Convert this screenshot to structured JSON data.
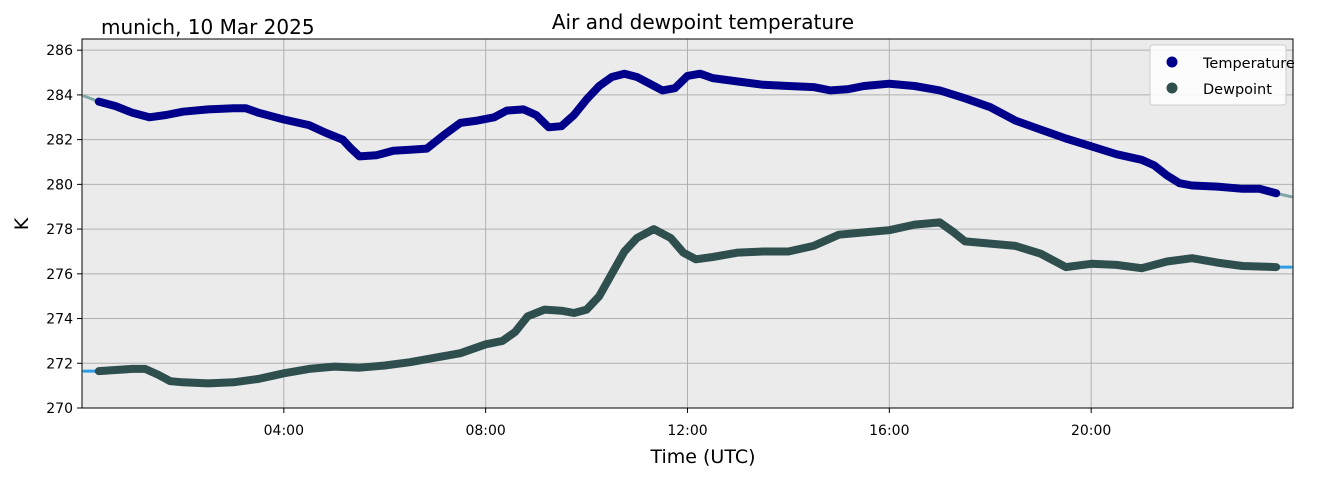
{
  "chart_data": {
    "type": "line",
    "title": "Air and dewpoint temperature",
    "subtitle": "munich, 10 Mar 2025",
    "xlabel": "Time (UTC)",
    "ylabel": "K",
    "xlim": [
      "00:00",
      "24:00"
    ],
    "ylim": [
      270,
      286.5
    ],
    "yticks": [
      270,
      272,
      274,
      276,
      278,
      280,
      282,
      284,
      286
    ],
    "xticks": [
      "04:00",
      "08:00",
      "12:00",
      "16:00",
      "20:00"
    ],
    "grid": true,
    "legend_position": "top-right",
    "background": "#ebebeb",
    "series": [
      {
        "name": "Temperature",
        "color": "#00008b",
        "raw_color": "#7fa6a6",
        "points": [
          [
            "00:20",
            283.7
          ],
          [
            "00:40",
            283.5
          ],
          [
            "01:00",
            283.2
          ],
          [
            "01:20",
            283.0
          ],
          [
            "01:40",
            283.1
          ],
          [
            "02:00",
            283.25
          ],
          [
            "02:30",
            283.35
          ],
          [
            "03:00",
            283.4
          ],
          [
            "03:15",
            283.4
          ],
          [
            "03:30",
            283.2
          ],
          [
            "04:00",
            282.9
          ],
          [
            "04:30",
            282.65
          ],
          [
            "04:50",
            282.3
          ],
          [
            "05:10",
            282.0
          ],
          [
            "05:20",
            281.6
          ],
          [
            "05:30",
            281.25
          ],
          [
            "05:50",
            281.3
          ],
          [
            "06:10",
            281.5
          ],
          [
            "06:30",
            281.55
          ],
          [
            "06:50",
            281.6
          ],
          [
            "07:10",
            282.2
          ],
          [
            "07:30",
            282.75
          ],
          [
            "07:50",
            282.85
          ],
          [
            "08:10",
            283.0
          ],
          [
            "08:25",
            283.3
          ],
          [
            "08:45",
            283.35
          ],
          [
            "09:00",
            283.1
          ],
          [
            "09:15",
            282.55
          ],
          [
            "09:30",
            282.6
          ],
          [
            "09:45",
            283.1
          ],
          [
            "10:00",
            283.8
          ],
          [
            "10:15",
            284.4
          ],
          [
            "10:30",
            284.8
          ],
          [
            "10:45",
            284.95
          ],
          [
            "11:00",
            284.8
          ],
          [
            "11:15",
            284.5
          ],
          [
            "11:30",
            284.2
          ],
          [
            "11:45",
            284.3
          ],
          [
            "12:00",
            284.85
          ],
          [
            "12:15",
            284.95
          ],
          [
            "12:30",
            284.75
          ],
          [
            "13:00",
            284.6
          ],
          [
            "13:30",
            284.45
          ],
          [
            "14:00",
            284.4
          ],
          [
            "14:30",
            284.35
          ],
          [
            "14:50",
            284.2
          ],
          [
            "15:10",
            284.25
          ],
          [
            "15:30",
            284.4
          ],
          [
            "16:00",
            284.5
          ],
          [
            "16:30",
            284.4
          ],
          [
            "17:00",
            284.2
          ],
          [
            "17:30",
            283.85
          ],
          [
            "18:00",
            283.45
          ],
          [
            "18:30",
            282.85
          ],
          [
            "19:00",
            282.45
          ],
          [
            "19:30",
            282.05
          ],
          [
            "20:00",
            281.7
          ],
          [
            "20:30",
            281.35
          ],
          [
            "21:00",
            281.1
          ],
          [
            "21:15",
            280.85
          ],
          [
            "21:30",
            280.4
          ],
          [
            "21:45",
            280.05
          ],
          [
            "22:00",
            279.95
          ],
          [
            "22:30",
            279.9
          ],
          [
            "23:00",
            279.8
          ],
          [
            "23:20",
            279.8
          ],
          [
            "23:40",
            279.6
          ]
        ]
      },
      {
        "name": "Dewpoint",
        "color": "#2f4f4f",
        "raw_color": "#2d9ee6",
        "points": [
          [
            "00:20",
            271.65
          ],
          [
            "00:40",
            271.7
          ],
          [
            "01:00",
            271.75
          ],
          [
            "01:15",
            271.75
          ],
          [
            "01:30",
            271.5
          ],
          [
            "01:45",
            271.2
          ],
          [
            "02:00",
            271.15
          ],
          [
            "02:30",
            271.1
          ],
          [
            "03:00",
            271.15
          ],
          [
            "03:30",
            271.3
          ],
          [
            "04:00",
            271.55
          ],
          [
            "04:30",
            271.75
          ],
          [
            "05:00",
            271.85
          ],
          [
            "05:30",
            271.8
          ],
          [
            "06:00",
            271.9
          ],
          [
            "06:30",
            272.05
          ],
          [
            "07:00",
            272.25
          ],
          [
            "07:30",
            272.45
          ],
          [
            "08:00",
            272.85
          ],
          [
            "08:20",
            273.0
          ],
          [
            "08:35",
            273.4
          ],
          [
            "08:50",
            274.1
          ],
          [
            "09:10",
            274.4
          ],
          [
            "09:30",
            274.35
          ],
          [
            "09:45",
            274.25
          ],
          [
            "10:00",
            274.4
          ],
          [
            "10:15",
            275.0
          ],
          [
            "10:30",
            276.0
          ],
          [
            "10:45",
            277.0
          ],
          [
            "11:00",
            277.6
          ],
          [
            "11:20",
            278.0
          ],
          [
            "11:40",
            277.6
          ],
          [
            "11:55",
            276.95
          ],
          [
            "12:10",
            276.65
          ],
          [
            "12:30",
            276.75
          ],
          [
            "13:00",
            276.95
          ],
          [
            "13:30",
            277.0
          ],
          [
            "14:00",
            277.0
          ],
          [
            "14:30",
            277.25
          ],
          [
            "15:00",
            277.75
          ],
          [
            "15:30",
            277.85
          ],
          [
            "16:00",
            277.95
          ],
          [
            "16:30",
            278.2
          ],
          [
            "17:00",
            278.3
          ],
          [
            "17:15",
            277.9
          ],
          [
            "17:30",
            277.45
          ],
          [
            "18:00",
            277.35
          ],
          [
            "18:30",
            277.25
          ],
          [
            "19:00",
            276.9
          ],
          [
            "19:30",
            276.3
          ],
          [
            "20:00",
            276.45
          ],
          [
            "20:30",
            276.4
          ],
          [
            "21:00",
            276.25
          ],
          [
            "21:30",
            276.55
          ],
          [
            "22:00",
            276.7
          ],
          [
            "22:30",
            276.5
          ],
          [
            "23:00",
            276.35
          ],
          [
            "23:40",
            276.3
          ]
        ]
      }
    ]
  }
}
